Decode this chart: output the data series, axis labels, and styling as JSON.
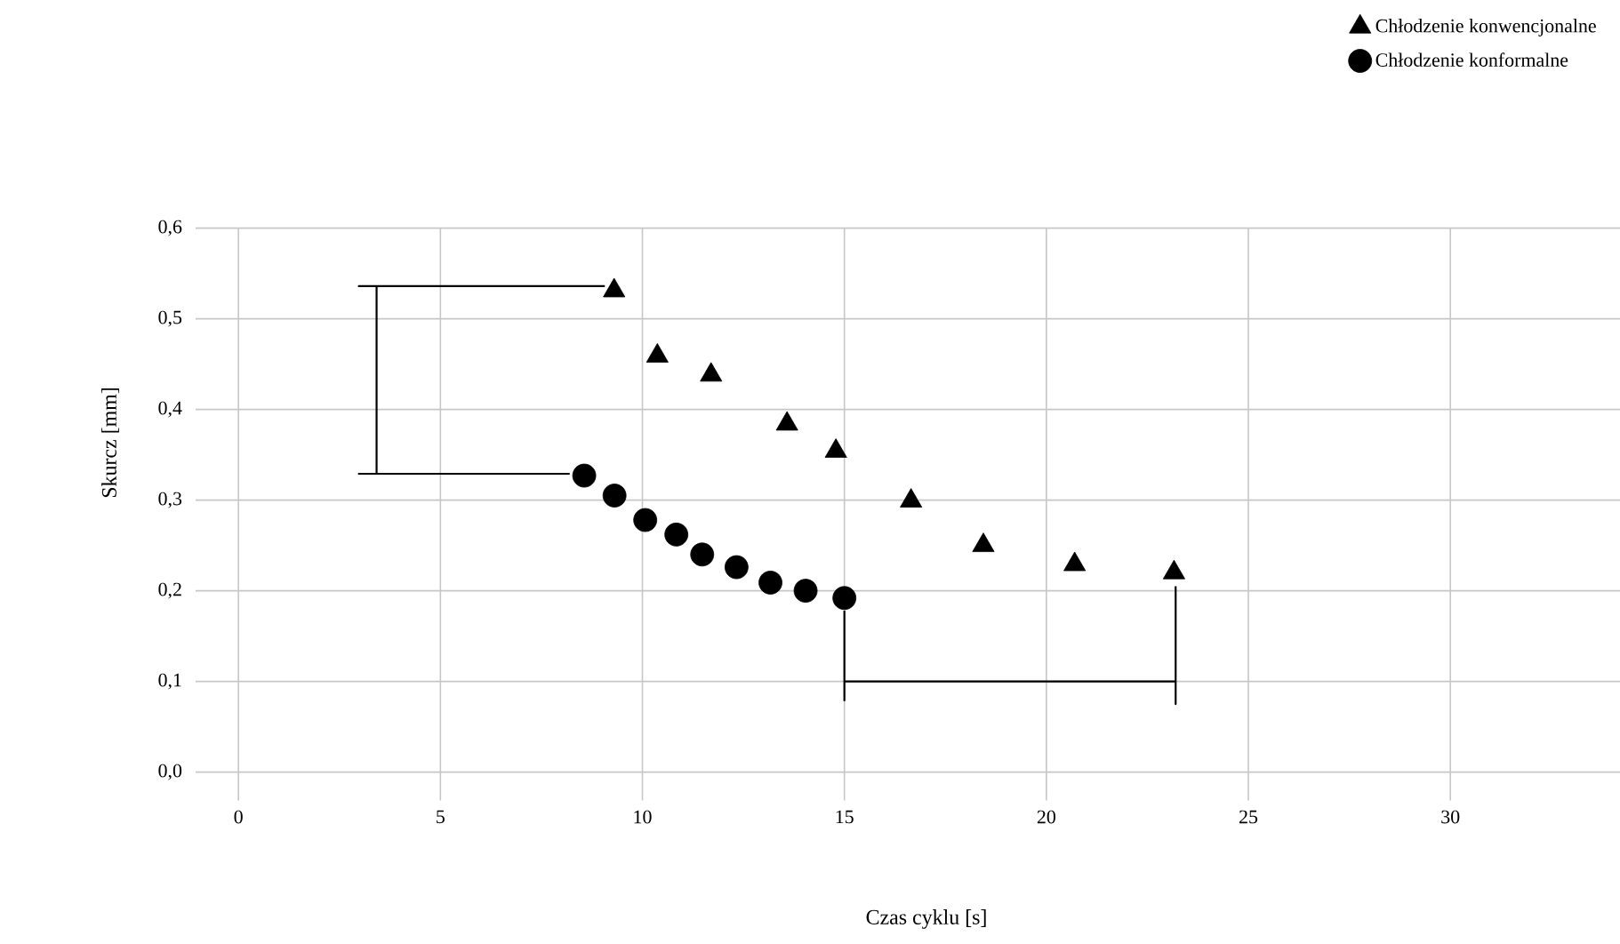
{
  "chart_data": {
    "type": "scatter",
    "xlabel": "Czas cyklu [s]",
    "ylabel": "Skurcz [mm]",
    "xlim": [
      -1.06,
      34.2
    ],
    "ylim": [
      0,
      0.6
    ],
    "xticks": [
      0,
      5,
      10,
      15,
      20,
      25,
      30
    ],
    "yticks": [
      {
        "value": 0,
        "label": "0,0"
      },
      {
        "value": 0.1,
        "label": "0,1"
      },
      {
        "value": 0.2,
        "label": "0,2"
      },
      {
        "value": 0.3,
        "label": "0,3"
      },
      {
        "value": 0.4,
        "label": "0,4"
      },
      {
        "value": 0.5,
        "label": "0,5"
      },
      {
        "value": 0.6,
        "label": "0,6"
      }
    ],
    "grid": true,
    "legend": "top right",
    "series": [
      {
        "name": "Chłodzenie konwencjonalne",
        "color": "#000000",
        "marker": "triangle",
        "x": [
          9.3,
          10.37,
          11.7,
          13.58,
          14.79,
          16.65,
          18.44,
          20.7,
          23.16
        ],
        "values": [
          0.531,
          0.459,
          0.438,
          0.384,
          0.354,
          0.299,
          0.25,
          0.229,
          0.22
        ]
      },
      {
        "name": "Chłodzenie konformalne",
        "color": "#000000",
        "marker": "circle",
        "x": [
          8.56,
          9.31,
          10.07,
          10.84,
          11.48,
          12.33,
          13.17,
          14.04,
          15.0
        ],
        "values": [
          0.327,
          0.305,
          0.278,
          0.262,
          0.24,
          0.226,
          0.209,
          0.2,
          0.192
        ]
      },
      {
        "type": "line",
        "color": "#000000",
        "marker": "none",
        "line_style": "solid",
        "x": [
          9.07,
          2.98,
          3.42,
          3.42,
          2.98,
          8.2
        ],
        "values": [
          0.536,
          0.536,
          0.536,
          0.329,
          0.329,
          0.329
        ]
      },
      {
        "type": "line",
        "color": "#000000",
        "marker": "none",
        "line_style": "solid",
        "x": [
          15.0,
          15.0,
          15.0,
          23.2,
          23.2,
          23.2
        ],
        "values": [
          0.178,
          0.079,
          0.1,
          0.1,
          0.075,
          0.205
        ]
      }
    ]
  }
}
